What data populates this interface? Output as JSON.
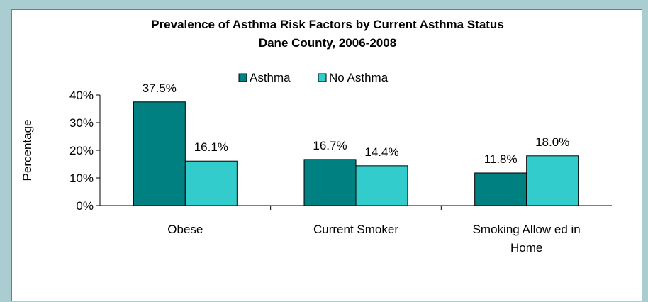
{
  "chart_data": {
    "type": "bar",
    "title": "Prevalence of Asthma Risk Factors by Current Asthma Status",
    "subtitle": "Dane County, 2006-2008",
    "xlabel": "",
    "ylabel": "Percentage",
    "ylim": [
      0,
      40
    ],
    "yticks": [
      "0%",
      "10%",
      "20%",
      "30%",
      "40%"
    ],
    "grid": false,
    "legend_position": "top-center",
    "categories": [
      "Obese",
      "Current Smoker",
      "Smoking Allowed in Home"
    ],
    "category_lines": [
      [
        "Obese"
      ],
      [
        "Current Smoker"
      ],
      [
        "Smoking Allow ed in",
        "Home"
      ]
    ],
    "series": [
      {
        "name": "Asthma",
        "color": "#008080",
        "values": [
          37.5,
          16.7,
          11.8
        ],
        "labels": [
          "37.5%",
          "16.7%",
          "11.8%"
        ]
      },
      {
        "name": "No Asthma",
        "color": "#33cccc",
        "values": [
          16.1,
          14.4,
          18.0
        ],
        "labels": [
          "16.1%",
          "14.4%",
          "18.0%"
        ]
      }
    ]
  }
}
